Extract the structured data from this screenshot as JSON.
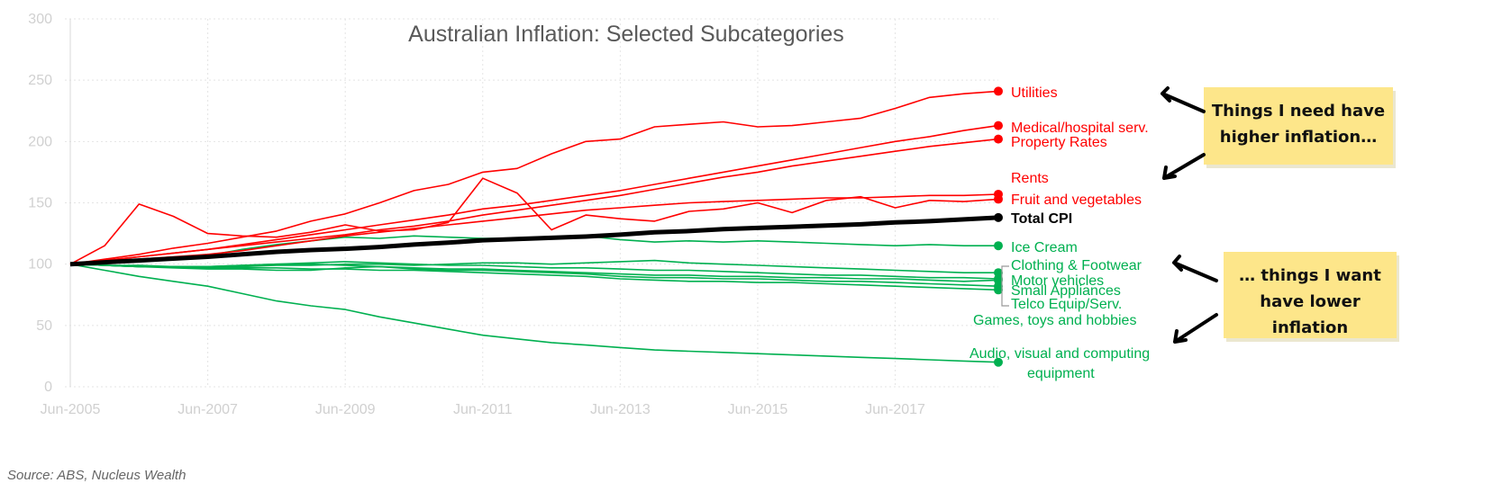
{
  "chart_data": {
    "type": "line",
    "title": "Australian Inflation: Selected Subcategories",
    "x_tick_labels": [
      "Jun-2005",
      "Jun-2007",
      "Jun-2009",
      "Jun-2011",
      "Jun-2013",
      "Jun-2015",
      "Jun-2017"
    ],
    "x_range": [
      "Jun-2005",
      "Dec-2018"
    ],
    "ylim": [
      0,
      300
    ],
    "y_ticks": [
      0,
      50,
      100,
      150,
      200,
      250,
      300
    ],
    "grid": true,
    "x": [
      "Jun-2005",
      "Dec-2005",
      "Jun-2006",
      "Dec-2006",
      "Jun-2007",
      "Dec-2007",
      "Jun-2008",
      "Dec-2008",
      "Jun-2009",
      "Dec-2009",
      "Jun-2010",
      "Dec-2010",
      "Jun-2011",
      "Dec-2011",
      "Jun-2012",
      "Dec-2012",
      "Jun-2013",
      "Dec-2013",
      "Jun-2014",
      "Dec-2014",
      "Jun-2015",
      "Dec-2015",
      "Jun-2016",
      "Dec-2016",
      "Jun-2017",
      "Dec-2017",
      "Jun-2018",
      "Dec-2018"
    ],
    "series": [
      {
        "name": "Utilities",
        "color": "#ff0000",
        "label_lines": [
          "Utilities"
        ],
        "values": [
          100,
          104,
          108,
          113,
          117,
          122,
          127,
          135,
          141,
          150,
          160,
          165,
          175,
          178,
          190,
          200,
          202,
          212,
          214,
          216,
          212,
          213,
          216,
          219,
          227,
          236,
          239,
          241
        ]
      },
      {
        "name": "Medical/hospital serv.",
        "color": "#ff0000",
        "label_lines": [
          "Medical/hospital serv."
        ],
        "values": [
          100,
          103,
          106,
          109,
          112,
          116,
          120,
          124,
          128,
          132,
          136,
          140,
          145,
          148,
          152,
          156,
          160,
          165,
          170,
          175,
          180,
          185,
          190,
          195,
          200,
          204,
          209,
          213
        ]
      },
      {
        "name": "Property Rates",
        "color": "#ff0000",
        "label_lines": [
          "Property Rates"
        ],
        "values": [
          100,
          103,
          106,
          109,
          112,
          115,
          118,
          121,
          124,
          128,
          131,
          135,
          140,
          144,
          148,
          152,
          156,
          161,
          166,
          171,
          175,
          180,
          184,
          188,
          192,
          196,
          199,
          202
        ]
      },
      {
        "name": "Rents",
        "color": "#ff0000",
        "label_lines": [
          "Rents"
        ],
        "values": [
          100,
          102,
          104,
          106,
          108,
          111,
          115,
          119,
          123,
          126,
          129,
          132,
          135,
          138,
          141,
          144,
          146,
          148,
          150,
          151,
          152,
          153,
          154,
          154,
          155,
          156,
          156,
          157
        ]
      },
      {
        "name": "Fruit and vegetables",
        "color": "#ff0000",
        "label_lines": [
          "Fruit and vegetables"
        ],
        "values": [
          100,
          115,
          149,
          139,
          125,
          123,
          122,
          126,
          132,
          127,
          128,
          134,
          170,
          158,
          128,
          140,
          137,
          135,
          143,
          145,
          150,
          142,
          152,
          155,
          146,
          152,
          151,
          153
        ]
      },
      {
        "name": "Total CPI",
        "color": "#000000",
        "label_lines": [
          "Total CPI"
        ],
        "values": [
          100,
          101.5,
          103,
          104.5,
          106,
          108,
          110,
          111.5,
          112.5,
          114,
          116,
          117.5,
          119.5,
          120.5,
          121.5,
          122.5,
          124,
          126,
          127,
          128.5,
          129.5,
          130.5,
          131.5,
          132.5,
          134,
          135,
          136.5,
          138
        ]
      },
      {
        "name": "Ice Cream",
        "color": "#00b050",
        "label_lines": [
          "Ice Cream"
        ],
        "values": [
          100,
          101,
          102,
          104,
          107,
          112,
          116,
          119,
          122,
          121,
          123,
          122,
          121,
          121,
          122,
          123,
          120,
          118,
          119,
          118,
          119,
          118,
          117,
          116,
          115,
          116,
          115,
          115
        ]
      },
      {
        "name": "Clothing & Footwear",
        "color": "#00b050",
        "label_lines": [
          "Clothing & Footwear"
        ],
        "values": [
          100,
          99,
          98,
          98,
          97,
          98,
          99,
          99,
          100,
          100,
          99,
          100,
          101,
          101,
          100,
          101,
          102,
          103,
          101,
          100,
          99,
          98,
          97,
          96,
          95,
          94,
          93,
          93
        ]
      },
      {
        "name": "Motor vehicles",
        "color": "#00b050",
        "label_lines": [
          "Motor vehicles"
        ],
        "values": [
          100,
          99,
          99,
          98,
          98,
          99,
          100,
          100,
          99,
          98,
          97,
          96,
          96,
          95,
          94,
          93,
          92,
          91,
          91,
          90,
          90,
          89,
          89,
          88,
          88,
          87,
          86,
          87
        ]
      },
      {
        "name": "Small Appliances",
        "color": "#00b050",
        "label_lines": [
          "Small Appliances"
        ],
        "values": [
          100,
          99,
          98,
          97,
          96,
          96,
          95,
          95,
          97,
          98,
          96,
          95,
          95,
          94,
          93,
          92,
          90,
          89,
          89,
          88,
          88,
          87,
          86,
          86,
          85,
          84,
          83,
          82
        ]
      },
      {
        "name": "Telco Equip/Serv.",
        "color": "#00b050",
        "label_lines": [
          "Telco Equip/Serv."
        ],
        "values": [
          100,
          99,
          98,
          98,
          97,
          97,
          97,
          96,
          96,
          95,
          95,
          94,
          93,
          92,
          91,
          90,
          88,
          87,
          86,
          86,
          85,
          85,
          84,
          83,
          82,
          81,
          80,
          79
        ]
      },
      {
        "name": "Games, toys and hobbies",
        "color": "#00b050",
        "label_lines": [
          "Games, toys and hobbies"
        ],
        "values": [
          100,
          99,
          98,
          98,
          98,
          99,
          100,
          101,
          102,
          101,
          100,
          99,
          99,
          98,
          97,
          97,
          96,
          95,
          95,
          94,
          93,
          92,
          91,
          91,
          90,
          89,
          89,
          88
        ]
      },
      {
        "name": "Audio, visual and computing equipment",
        "color": "#00b050",
        "label_lines": [
          "Audio, visual and computing",
          "equipment"
        ],
        "values": [
          100,
          95,
          90,
          86,
          82,
          76,
          70,
          66,
          63,
          57,
          52,
          47,
          42,
          39,
          36,
          34,
          32,
          30,
          29,
          28,
          27,
          26,
          25,
          24,
          23,
          22,
          21,
          20
        ]
      }
    ],
    "annotations": [
      {
        "text_lines": [
          "Things I need have",
          "higher inflation…"
        ],
        "underlined": "need"
      },
      {
        "text_lines": [
          "… things I want",
          "have lower",
          "inflation"
        ],
        "underlined": "want"
      }
    ],
    "source": "Source: ABS, Nucleus Wealth"
  }
}
